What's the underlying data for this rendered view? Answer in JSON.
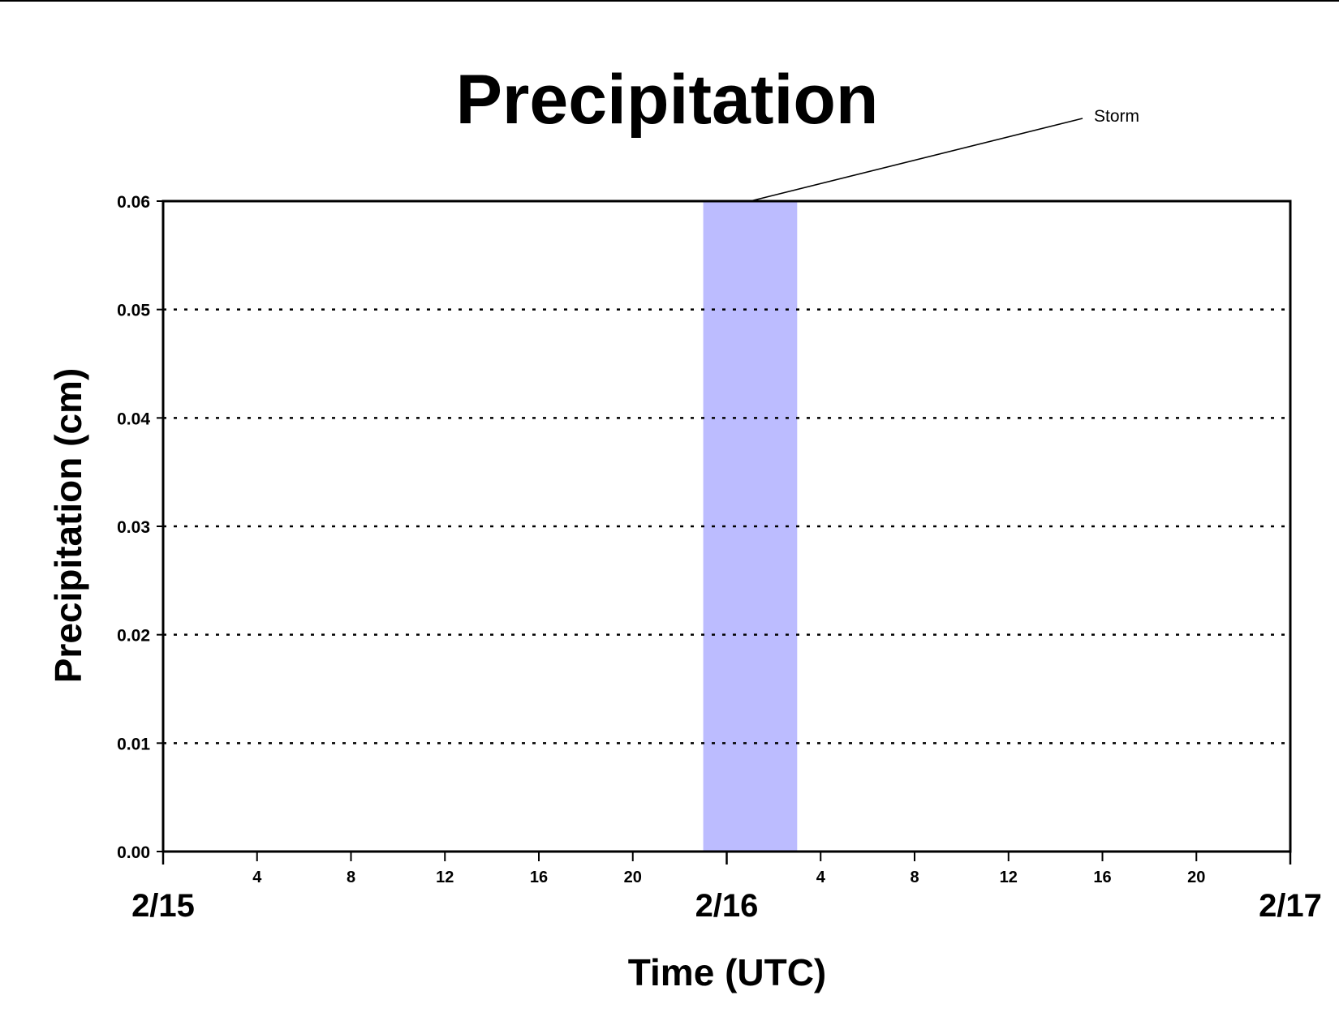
{
  "chart_data": {
    "type": "bar",
    "title": "Precipitation",
    "xlabel": "Time (UTC)",
    "ylabel": "Precipitation (cm)",
    "ylim": [
      0,
      0.06
    ],
    "yticks": [
      "0.00",
      "0.01",
      "0.02",
      "0.03",
      "0.04",
      "0.05",
      "0.06"
    ],
    "xlim_hours": [
      0,
      48
    ],
    "hour_ticks": [
      {
        "hour": 4,
        "label": "4"
      },
      {
        "hour": 8,
        "label": "8"
      },
      {
        "hour": 12,
        "label": "12"
      },
      {
        "hour": 16,
        "label": "16"
      },
      {
        "hour": 20,
        "label": "20"
      },
      {
        "hour": 28,
        "label": "4"
      },
      {
        "hour": 32,
        "label": "8"
      },
      {
        "hour": 36,
        "label": "12"
      },
      {
        "hour": 40,
        "label": "16"
      },
      {
        "hour": 44,
        "label": "20"
      }
    ],
    "date_ticks": [
      {
        "hour": 0,
        "label": "2/15"
      },
      {
        "hour": 24,
        "label": "2/16"
      },
      {
        "hour": 48,
        "label": "2/17"
      }
    ],
    "grid": "horizontal dotted",
    "series": [
      {
        "values": [
          0,
          0
        ]
      }
    ],
    "highlight": {
      "label": "Storm",
      "start_hour": 23,
      "end_hour": 27,
      "color": "#bcbcff"
    },
    "colors": {
      "baseline": "#c00000",
      "axes": "#000000"
    }
  }
}
